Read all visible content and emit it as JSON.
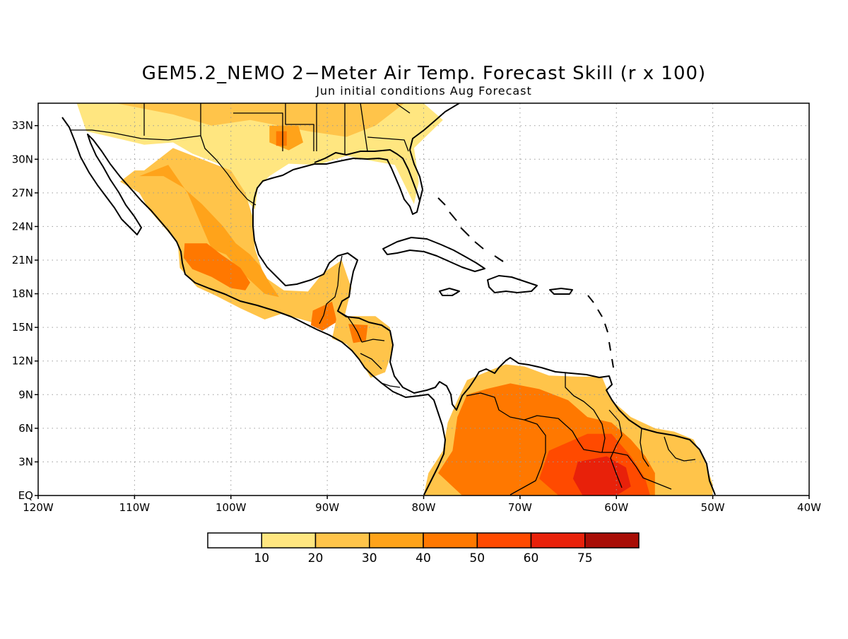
{
  "title": "GEM5.2_NEMO 2−Meter Air Temp. Forecast Skill (r x 100)",
  "subtitle": "Jun initial conditions  Aug Forecast",
  "map": {
    "lon_range": [
      -120,
      -40
    ],
    "lat_range": [
      0,
      35
    ],
    "x_ticks": [
      {
        "lon": -120,
        "label": "120W"
      },
      {
        "lon": -110,
        "label": "110W"
      },
      {
        "lon": -100,
        "label": "100W"
      },
      {
        "lon": -90,
        "label": "90W"
      },
      {
        "lon": -80,
        "label": "80W"
      },
      {
        "lon": -70,
        "label": "70W"
      },
      {
        "lon": -60,
        "label": "60W"
      },
      {
        "lon": -50,
        "label": "50W"
      },
      {
        "lon": -40,
        "label": "40W"
      }
    ],
    "y_ticks": [
      {
        "lat": 0,
        "label": "EQ"
      },
      {
        "lat": 3,
        "label": "3N"
      },
      {
        "lat": 6,
        "label": "6N"
      },
      {
        "lat": 9,
        "label": "9N"
      },
      {
        "lat": 12,
        "label": "12N"
      },
      {
        "lat": 15,
        "label": "15N"
      },
      {
        "lat": 18,
        "label": "18N"
      },
      {
        "lat": 21,
        "label": "21N"
      },
      {
        "lat": 24,
        "label": "24N"
      },
      {
        "lat": 27,
        "label": "27N"
      },
      {
        "lat": 30,
        "label": "30N"
      },
      {
        "lat": 33,
        "label": "33N"
      }
    ],
    "grid": true
  },
  "colorbar": {
    "colors": [
      "#ffffff",
      "#ffe680",
      "#ffc44a",
      "#ffa31a",
      "#ff7800",
      "#ff4a00",
      "#e8210a",
      "#a80d06"
    ],
    "labels": [
      "10",
      "20",
      "30",
      "40",
      "50",
      "60",
      "75"
    ]
  },
  "skill_fields": [
    {
      "name": "southeast-us",
      "color_index": 1,
      "polygon": [
        [
          -116,
          35
        ],
        [
          -80,
          35
        ],
        [
          -78,
          33.5
        ],
        [
          -81,
          31
        ],
        [
          -80.5,
          28
        ],
        [
          -81,
          26
        ],
        [
          -83,
          29.5
        ],
        [
          -85,
          29.8
        ],
        [
          -88,
          30.3
        ],
        [
          -91,
          29.5
        ],
        [
          -94,
          29.6
        ],
        [
          -96,
          28.5
        ],
        [
          -97.2,
          27.5
        ],
        [
          -97.5,
          25.5
        ],
        [
          -99,
          27
        ],
        [
          -101,
          29.5
        ],
        [
          -104,
          30.5
        ],
        [
          -106,
          31.5
        ],
        [
          -109,
          31.3
        ],
        [
          -111,
          31.7
        ],
        [
          -115,
          32.5
        ]
      ]
    },
    {
      "name": "southeast-us-core",
      "color_index": 2,
      "polygon": [
        [
          -112,
          35
        ],
        [
          -82,
          35
        ],
        [
          -85,
          33
        ],
        [
          -88,
          32
        ],
        [
          -92,
          32.5
        ],
        [
          -95,
          33
        ],
        [
          -98,
          33.5
        ],
        [
          -102,
          33
        ],
        [
          -106,
          34
        ]
      ]
    },
    {
      "name": "texas-hotspot",
      "color_index": 3,
      "polygon": [
        [
          -96,
          33
        ],
        [
          -93,
          33
        ],
        [
          -92.5,
          31.5
        ],
        [
          -94,
          30.8
        ],
        [
          -96,
          31.5
        ]
      ]
    },
    {
      "name": "texas-core",
      "color_index": 4,
      "polygon": [
        [
          -95.3,
          32.5
        ],
        [
          -94.2,
          32.5
        ],
        [
          -94.2,
          31.2
        ],
        [
          -95.3,
          31.2
        ]
      ]
    },
    {
      "name": "mexico",
      "color_index": 2,
      "polygon": [
        [
          -109,
          29
        ],
        [
          -106,
          31
        ],
        [
          -103,
          30
        ],
        [
          -100,
          29
        ],
        [
          -98.5,
          27
        ],
        [
          -97.8,
          25
        ],
        [
          -97.5,
          22
        ],
        [
          -96.5,
          19.5
        ],
        [
          -94.5,
          18.3
        ],
        [
          -92,
          18.2
        ],
        [
          -90.5,
          19.8
        ],
        [
          -88.5,
          21
        ],
        [
          -87.5,
          18.5
        ],
        [
          -88.2,
          16
        ],
        [
          -91,
          15.3
        ],
        [
          -93,
          15.8
        ],
        [
          -94.8,
          16.2
        ],
        [
          -96.5,
          15.7
        ],
        [
          -99,
          16.7
        ],
        [
          -101.5,
          17.8
        ],
        [
          -103.5,
          18.6
        ],
        [
          -105.3,
          20.3
        ],
        [
          -105.5,
          22.5
        ],
        [
          -107,
          24
        ],
        [
          -108.5,
          25.5
        ],
        [
          -109.5,
          27
        ],
        [
          -111.5,
          28
        ],
        [
          -110,
          29
        ]
      ]
    },
    {
      "name": "mexico-west",
      "color_index": 3,
      "polygon": [
        [
          -109.5,
          28.5
        ],
        [
          -106.5,
          29.5
        ],
        [
          -104.5,
          27
        ],
        [
          -103,
          24
        ],
        [
          -102,
          22
        ],
        [
          -100.5,
          21.5
        ],
        [
          -99,
          20
        ],
        [
          -97.5,
          18.8
        ],
        [
          -96.5,
          18
        ],
        [
          -95,
          17.7
        ],
        [
          -96,
          19
        ],
        [
          -97,
          20.5
        ],
        [
          -98,
          21.5
        ],
        [
          -99.5,
          22.5
        ],
        [
          -100.8,
          24
        ],
        [
          -103,
          26
        ],
        [
          -105,
          27.5
        ],
        [
          -107,
          28.5
        ]
      ]
    },
    {
      "name": "mexico-central",
      "color_index": 4,
      "polygon": [
        [
          -104.8,
          22.5
        ],
        [
          -102.5,
          22.5
        ],
        [
          -101,
          21.5
        ],
        [
          -99,
          20.3
        ],
        [
          -98,
          19
        ],
        [
          -98.5,
          18.3
        ],
        [
          -100,
          18.5
        ],
        [
          -102,
          19.5
        ],
        [
          -104,
          20.2
        ],
        [
          -104.9,
          21.2
        ]
      ]
    },
    {
      "name": "guatemala-hotspot",
      "color_index": 4,
      "polygon": [
        [
          -91.5,
          16.5
        ],
        [
          -89.5,
          17.3
        ],
        [
          -89,
          15.5
        ],
        [
          -90.5,
          14.7
        ],
        [
          -91.7,
          15.2
        ]
      ]
    },
    {
      "name": "central-america",
      "color_index": 2,
      "polygon": [
        [
          -89,
          16
        ],
        [
          -85,
          16
        ],
        [
          -83.5,
          15
        ],
        [
          -83.2,
          13
        ],
        [
          -84,
          11
        ],
        [
          -85.5,
          10.5
        ],
        [
          -86.5,
          12
        ],
        [
          -88,
          13.5
        ],
        [
          -89.5,
          14
        ]
      ]
    },
    {
      "name": "honduras-hotspot",
      "color_index": 4,
      "polygon": [
        [
          -87.8,
          15.3
        ],
        [
          -85.8,
          15.2
        ],
        [
          -86,
          13.8
        ],
        [
          -87.3,
          13.6
        ]
      ]
    },
    {
      "name": "south-america",
      "color_index": 2,
      "polygon": [
        [
          -80,
          0
        ],
        [
          -79.5,
          2
        ],
        [
          -78,
          4
        ],
        [
          -77.5,
          6.5
        ],
        [
          -76.5,
          8.5
        ],
        [
          -75.5,
          10.3
        ],
        [
          -73,
          11.2
        ],
        [
          -71.5,
          11.7
        ],
        [
          -69.5,
          11.5
        ],
        [
          -67,
          10.7
        ],
        [
          -64,
          10.6
        ],
        [
          -61.5,
          10.6
        ],
        [
          -60.5,
          8.5
        ],
        [
          -58.5,
          7
        ],
        [
          -56,
          6
        ],
        [
          -54,
          5.7
        ],
        [
          -52,
          5
        ],
        [
          -50.8,
          3
        ],
        [
          -50,
          1
        ],
        [
          -50,
          0
        ]
      ]
    },
    {
      "name": "south-america-core",
      "color_index": 4,
      "polygon": [
        [
          -78.5,
          2
        ],
        [
          -77,
          4
        ],
        [
          -76.5,
          7
        ],
        [
          -75.5,
          9
        ],
        [
          -73.5,
          9.5
        ],
        [
          -71,
          10
        ],
        [
          -68,
          9.5
        ],
        [
          -65,
          8.5
        ],
        [
          -63,
          7
        ],
        [
          -60.5,
          6.5
        ],
        [
          -58.5,
          5
        ],
        [
          -57,
          3.5
        ],
        [
          -56,
          2
        ],
        [
          -56,
          0
        ],
        [
          -65,
          0
        ],
        [
          -71,
          0
        ],
        [
          -76,
          0
        ]
      ]
    },
    {
      "name": "guiana-hotspot",
      "color_index": 5,
      "polygon": [
        [
          -67,
          4
        ],
        [
          -63,
          5.5
        ],
        [
          -60.5,
          5.5
        ],
        [
          -58.5,
          3.5
        ],
        [
          -57,
          1.5
        ],
        [
          -56.5,
          0
        ],
        [
          -66,
          0
        ],
        [
          -68,
          1.5
        ]
      ]
    },
    {
      "name": "guiana-max",
      "color_index": 6,
      "polygon": [
        [
          -64,
          3
        ],
        [
          -61,
          3.5
        ],
        [
          -59,
          2.5
        ],
        [
          -58.5,
          0.8
        ],
        [
          -60,
          0
        ],
        [
          -63.5,
          0
        ],
        [
          -64.5,
          1.5
        ]
      ]
    }
  ]
}
